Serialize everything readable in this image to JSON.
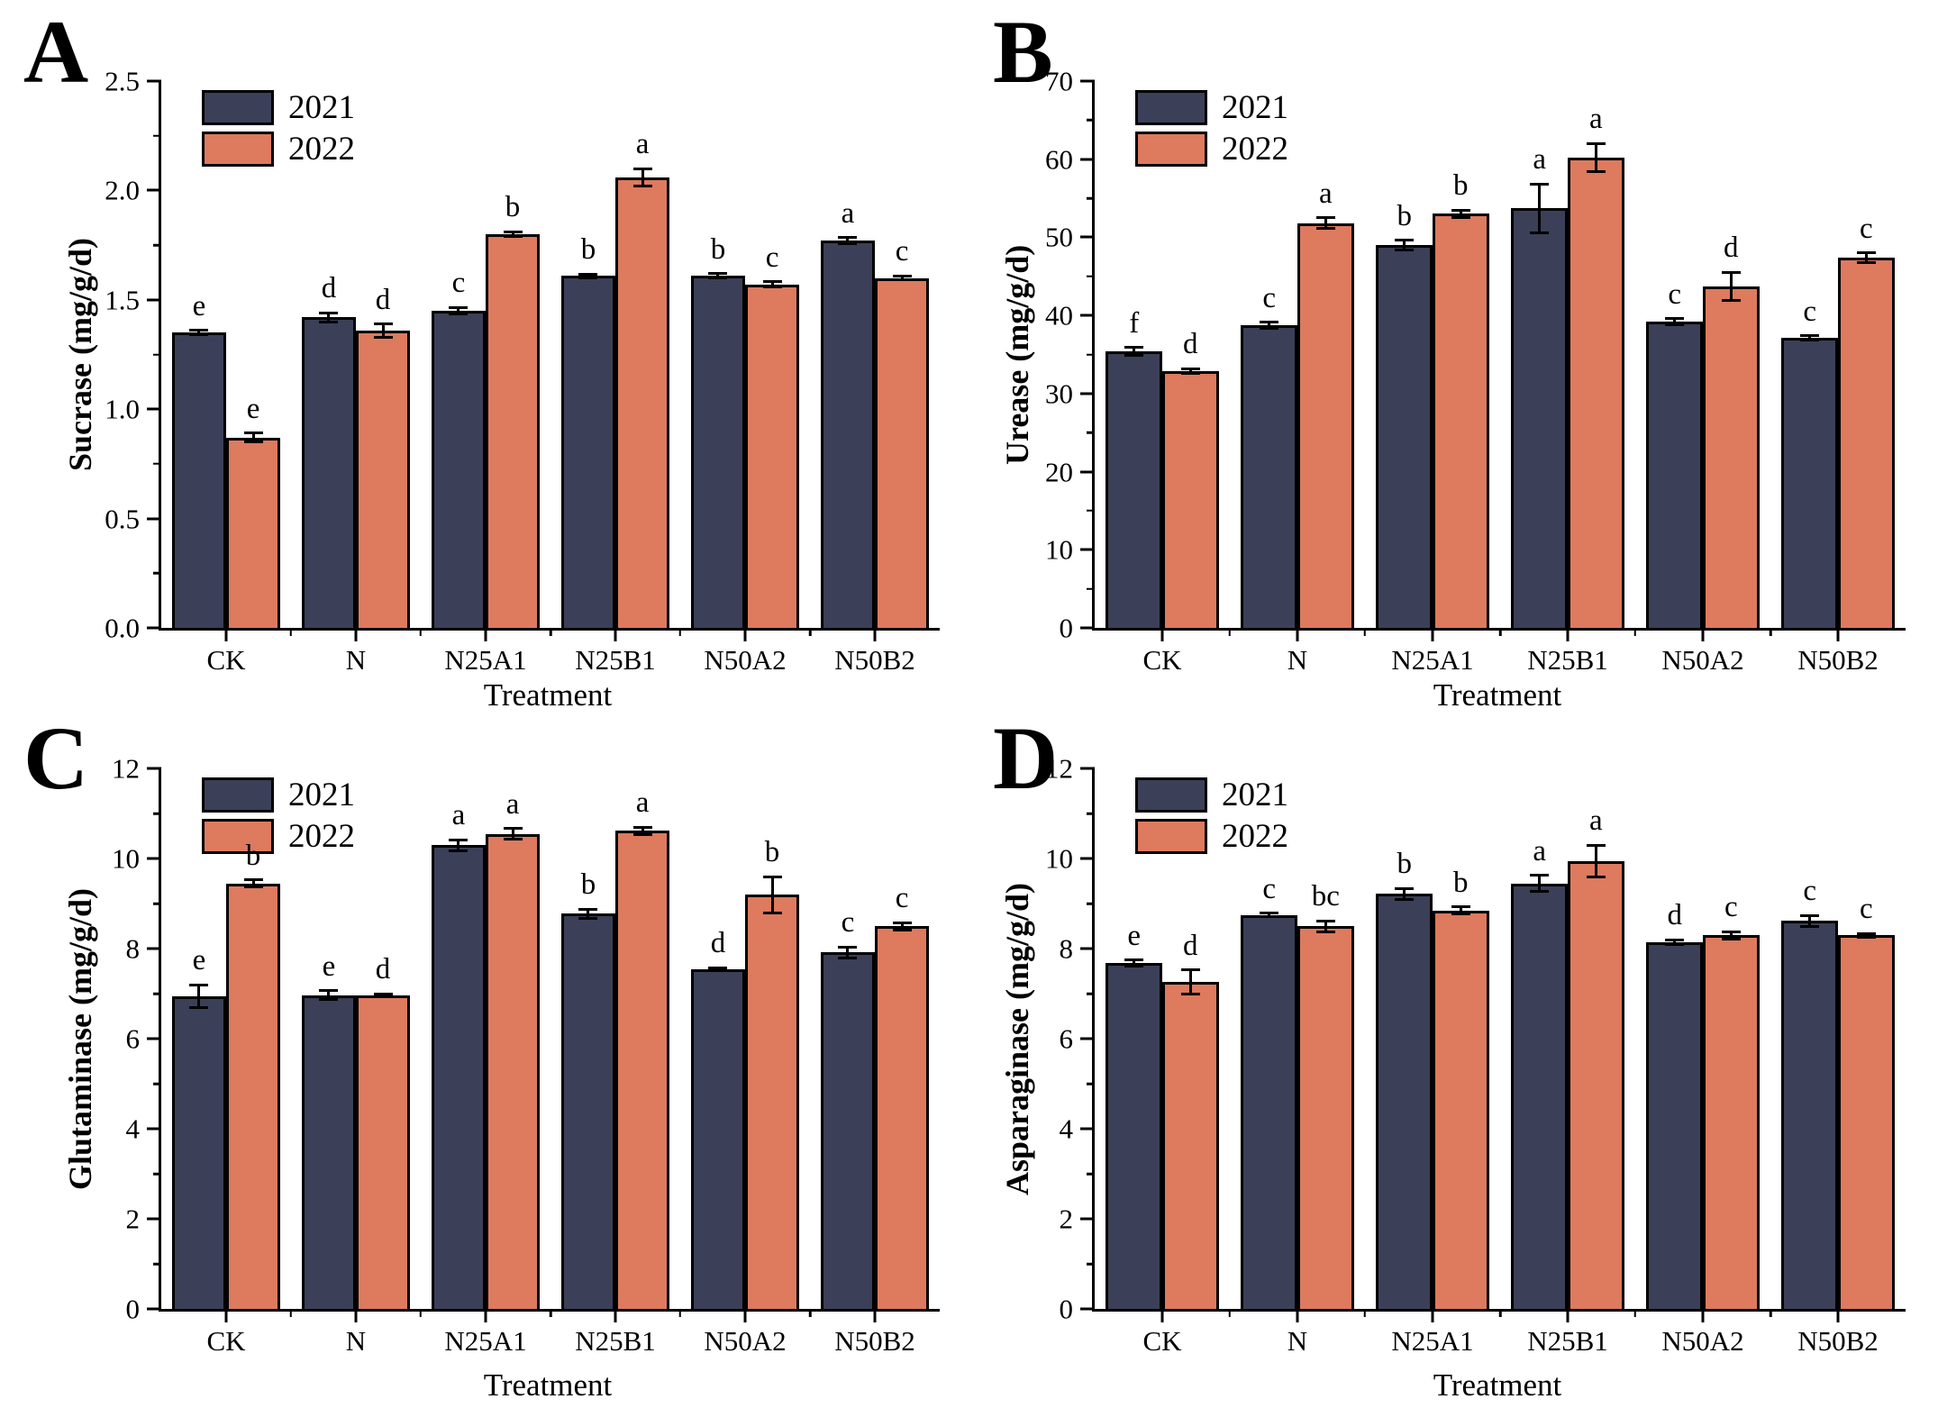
{
  "figure": {
    "background": "#FFFFFF",
    "axis_color": "#000000",
    "bar_colors": {
      "year2021": "#3B4058",
      "year2022": "#DE7A5E"
    }
  },
  "chart_data": [
    {
      "panel": "A",
      "type": "bar",
      "ylabel": "Sucrase (mg/g/d)",
      "xlabel": "Treatment",
      "categories": [
        "CK",
        "N",
        "N25A1",
        "N25B1",
        "N50A2",
        "N50B2"
      ],
      "ylim": [
        0,
        2.5
      ],
      "yticks": [
        0,
        0.5,
        1.0,
        1.5,
        2.0,
        2.5
      ],
      "ytick_labels": [
        "0.0",
        "0.5",
        "1.0",
        "1.5",
        "2.0",
        "2.5"
      ],
      "yminor_step": 0.25,
      "grid": false,
      "legend_position": "top-left",
      "series": [
        {
          "name": "2021",
          "color": "#3B4058",
          "values": [
            1.35,
            1.42,
            1.45,
            1.61,
            1.61,
            1.77
          ],
          "errors": [
            0.01,
            0.02,
            0.015,
            0.008,
            0.01,
            0.015
          ],
          "letters": [
            "e",
            "d",
            "c",
            "b",
            "b",
            "a"
          ]
        },
        {
          "name": "2022",
          "color": "#DE7A5E",
          "values": [
            0.87,
            1.36,
            1.8,
            2.06,
            1.57,
            1.6
          ],
          "errors": [
            0.02,
            0.03,
            0.012,
            0.04,
            0.012,
            0.01
          ],
          "letters": [
            "e",
            "d",
            "b",
            "a",
            "c",
            "c"
          ]
        }
      ]
    },
    {
      "panel": "B",
      "type": "bar",
      "ylabel": "Urease (mg/g/d)",
      "xlabel": "Treatment",
      "categories": [
        "CK",
        "N",
        "N25A1",
        "N25B1",
        "N50A2",
        "N50B2"
      ],
      "ylim": [
        0,
        70
      ],
      "yticks": [
        0,
        10,
        20,
        30,
        40,
        50,
        60,
        70
      ],
      "ytick_labels": [
        "0",
        "10",
        "20",
        "30",
        "40",
        "50",
        "60",
        "70"
      ],
      "yminor_step": 5,
      "grid": false,
      "legend_position": "top-left",
      "series": [
        {
          "name": "2021",
          "color": "#3B4058",
          "values": [
            35.4,
            38.7,
            49.0,
            53.7,
            39.2,
            37.1
          ],
          "errors": [
            0.5,
            0.4,
            0.6,
            3.1,
            0.4,
            0.3
          ],
          "letters": [
            "f",
            "c",
            "b",
            "a",
            "c",
            "c"
          ]
        },
        {
          "name": "2022",
          "color": "#DE7A5E",
          "values": [
            32.9,
            51.8,
            53.0,
            60.2,
            43.7,
            47.4
          ],
          "errors": [
            0.3,
            0.7,
            0.5,
            1.8,
            1.8,
            0.6
          ],
          "letters": [
            "d",
            "a",
            "b",
            "a",
            "d",
            "c"
          ]
        }
      ]
    },
    {
      "panel": "C",
      "type": "bar",
      "ylabel": "Glutaminase (mg/g/d)",
      "xlabel": "Treatment",
      "categories": [
        "CK",
        "N",
        "N25A1",
        "N25B1",
        "N50A2",
        "N50B2"
      ],
      "ylim": [
        0,
        12
      ],
      "yticks": [
        0,
        2,
        4,
        6,
        8,
        10,
        12
      ],
      "ytick_labels": [
        "0",
        "2",
        "4",
        "6",
        "8",
        "10",
        "12"
      ],
      "yminor_step": 1,
      "grid": false,
      "legend_position": "top-left",
      "series": [
        {
          "name": "2021",
          "color": "#3B4058",
          "values": [
            6.95,
            6.97,
            10.3,
            8.78,
            7.55,
            7.92
          ],
          "errors": [
            0.25,
            0.1,
            0.12,
            0.1,
            0.03,
            0.12
          ],
          "letters": [
            "e",
            "e",
            "a",
            "b",
            "d",
            "c"
          ]
        },
        {
          "name": "2022",
          "color": "#DE7A5E",
          "values": [
            9.45,
            6.97,
            10.55,
            10.62,
            9.2,
            8.5
          ],
          "errors": [
            0.08,
            0.03,
            0.12,
            0.08,
            0.4,
            0.08
          ],
          "letters": [
            "b",
            "d",
            "a",
            "a",
            "b",
            "c"
          ]
        }
      ]
    },
    {
      "panel": "D",
      "type": "bar",
      "ylabel": "Asparaginase (mg/g/d)",
      "xlabel": "Treatment",
      "categories": [
        "CK",
        "N",
        "N25A1",
        "N25B1",
        "N50A2",
        "N50B2"
      ],
      "ylim": [
        0,
        12
      ],
      "yticks": [
        0,
        2,
        4,
        6,
        8,
        10,
        12
      ],
      "ytick_labels": [
        "0",
        "2",
        "4",
        "6",
        "8",
        "10",
        "12"
      ],
      "yminor_step": 1,
      "grid": false,
      "legend_position": "top-left",
      "series": [
        {
          "name": "2021",
          "color": "#3B4058",
          "values": [
            7.68,
            8.75,
            9.22,
            9.45,
            8.15,
            8.62
          ],
          "errors": [
            0.07,
            0.04,
            0.12,
            0.18,
            0.05,
            0.12
          ],
          "letters": [
            "e",
            "c",
            "b",
            "a",
            "d",
            "c"
          ]
        },
        {
          "name": "2022",
          "color": "#DE7A5E",
          "values": [
            7.26,
            8.5,
            8.85,
            9.95,
            8.3,
            8.3
          ],
          "errors": [
            0.27,
            0.12,
            0.08,
            0.35,
            0.08,
            0.04
          ],
          "letters": [
            "d",
            "bc",
            "b",
            "a",
            "c",
            "c"
          ]
        }
      ]
    }
  ]
}
